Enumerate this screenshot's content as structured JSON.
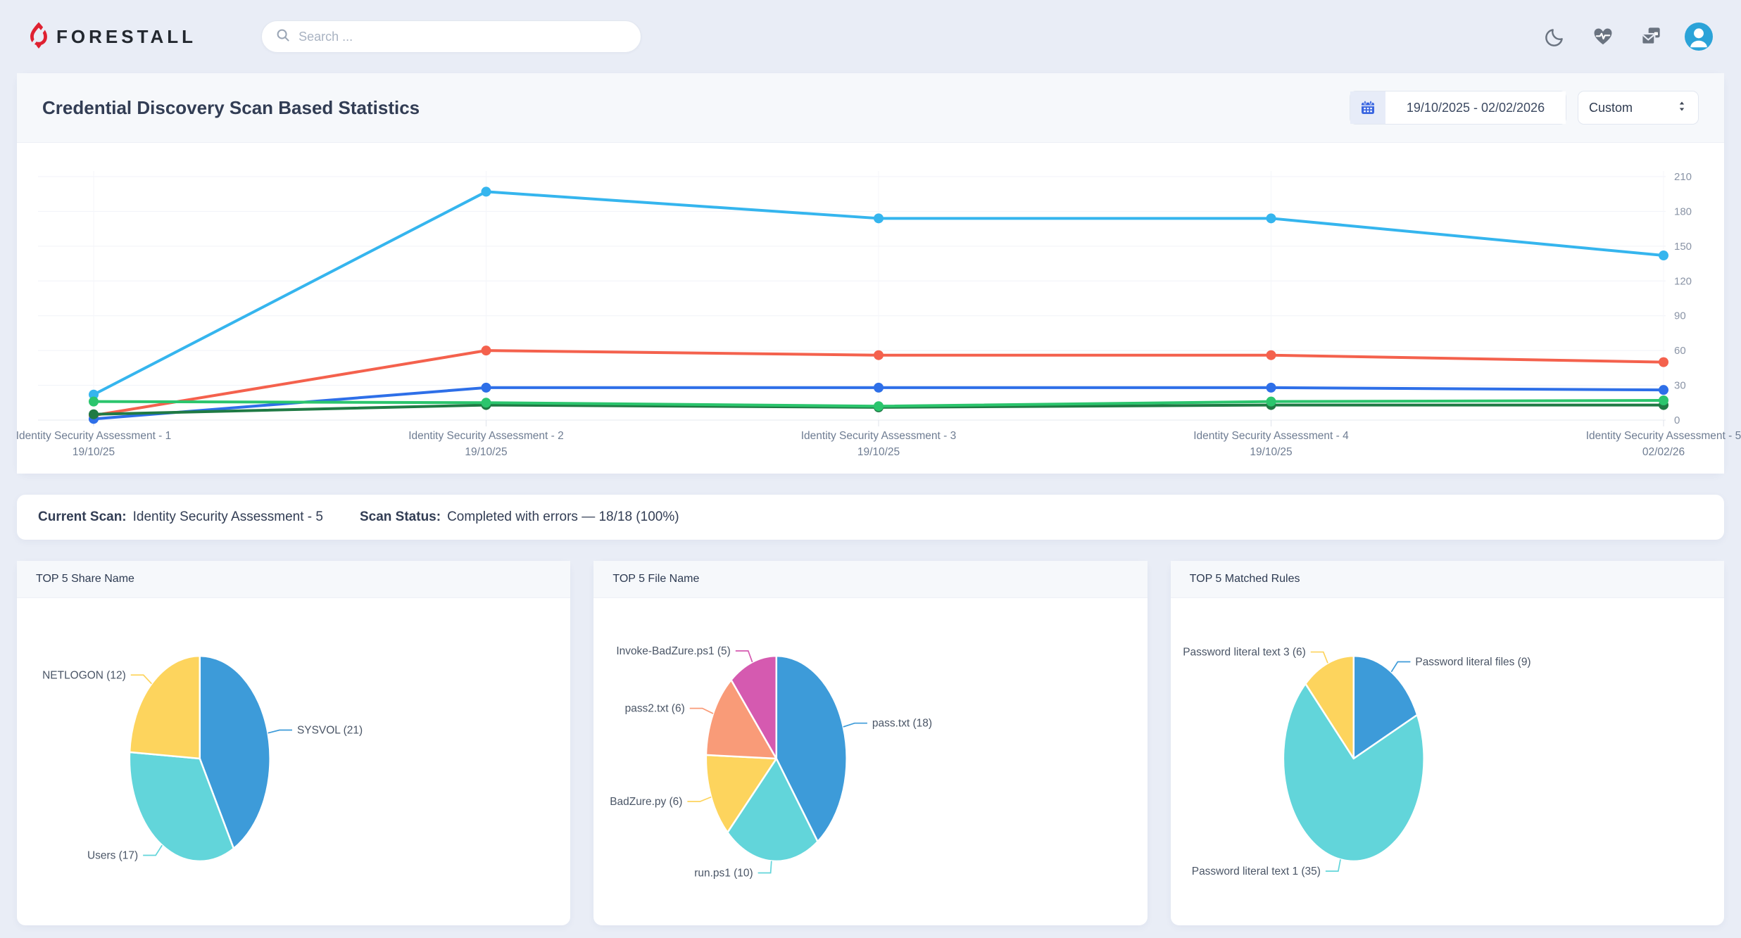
{
  "navbar": {
    "brand": "FORESTALL",
    "brand_color": "#df2131",
    "search": {
      "placeholder": "Search ...",
      "icon": "magnifier-icon"
    },
    "actions": [
      {
        "name": "dark-mode-toggle",
        "icon": "moon-icon"
      },
      {
        "name": "health-status",
        "icon": "heart-pulse-icon"
      },
      {
        "name": "messages",
        "icon": "mail-stack-icon"
      },
      {
        "name": "user-menu",
        "icon": "user-avatar-icon",
        "avatar_color": "#2ba3d8"
      }
    ]
  },
  "stats_card": {
    "title": "Credential Discovery Scan Based Statistics",
    "date_picker": {
      "icon": "calendar-icon",
      "value": "19/10/2025 - 02/02/2026"
    },
    "range_select": {
      "value": "Custom",
      "icon": "up-down-arrows-icon"
    }
  },
  "status_bar": {
    "current_scan_label": "Current Scan:",
    "current_scan_value": "Identity Security Assessment - 5",
    "scan_status_label": "Scan Status:",
    "scan_status_value": "Completed with errors — 18/18 (100%)"
  },
  "chart_data": [
    {
      "type": "line",
      "title": "Credential Discovery Scan Based Statistics",
      "grid": true,
      "legend": "none",
      "y_axis_position": "right",
      "ylim": [
        0,
        210
      ],
      "y_tick_step": 30,
      "categories": [
        {
          "name": "Identity Security Assessment - 1",
          "date": "19/10/25"
        },
        {
          "name": "Identity Security Assessment - 2",
          "date": "19/10/25"
        },
        {
          "name": "Identity Security Assessment - 3",
          "date": "19/10/25"
        },
        {
          "name": "Identity Security Assessment - 4",
          "date": "19/10/25"
        },
        {
          "name": "Identity Security Assessment - 5",
          "date": "02/02/26"
        }
      ],
      "series": [
        {
          "name": "",
          "color": "#35b5ee",
          "values": [
            22,
            197,
            174,
            174,
            142
          ]
        },
        {
          "name": "",
          "color": "#f4614d",
          "values": [
            4,
            60,
            56,
            56,
            50
          ]
        },
        {
          "name": "",
          "color": "#2e6fe8",
          "values": [
            1,
            28,
            28,
            28,
            26
          ]
        },
        {
          "name": "",
          "color": "#1f7a44",
          "values": [
            5,
            13,
            11,
            13,
            13
          ]
        },
        {
          "name": "",
          "color": "#2bc56d",
          "values": [
            16,
            15,
            12,
            16,
            17
          ]
        }
      ]
    },
    {
      "type": "pie",
      "title": "TOP 5 Share Name",
      "label_format": "{label} ({value})",
      "slices": [
        {
          "label": "SYSVOL",
          "value": 21,
          "color": "#3d9bd9"
        },
        {
          "label": "Users",
          "value": 17,
          "color": "#62d5da"
        },
        {
          "label": "NETLOGON",
          "value": 12,
          "color": "#fdd45d"
        }
      ]
    },
    {
      "type": "pie",
      "title": "TOP 5 File Name",
      "label_format": "{label} ({value})",
      "slices": [
        {
          "label": "pass.txt",
          "value": 18,
          "color": "#3d9bd9"
        },
        {
          "label": "run.ps1",
          "value": 10,
          "color": "#62d5da"
        },
        {
          "label": "BadZure.py",
          "value": 6,
          "color": "#fdd45d"
        },
        {
          "label": "pass2.txt",
          "value": 6,
          "color": "#f99b78"
        },
        {
          "label": "Invoke-BadZure.ps1",
          "value": 5,
          "color": "#d55ab0"
        }
      ]
    },
    {
      "type": "pie",
      "title": "TOP 5 Matched Rules",
      "label_format": "{label} ({value})",
      "slices": [
        {
          "label": "Password literal files",
          "value": 9,
          "color": "#3d9bd9"
        },
        {
          "label": "Password literal text 1",
          "value": 35,
          "color": "#62d5da"
        },
        {
          "label": "Password literal text 3",
          "value": 6,
          "color": "#fdd45d"
        }
      ]
    }
  ]
}
